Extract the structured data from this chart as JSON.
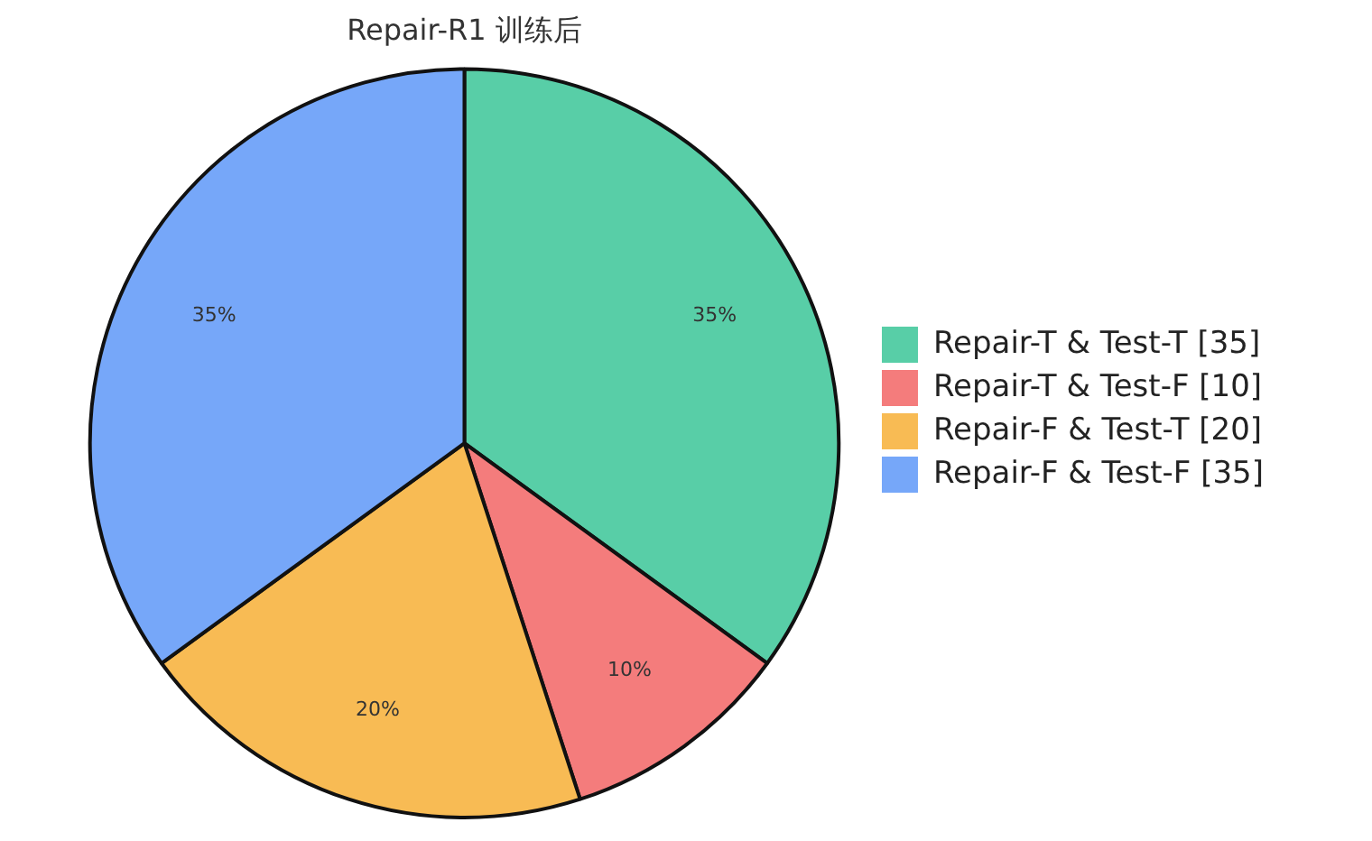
{
  "chart_data": {
    "type": "pie",
    "title": "Repair-R1 训练后",
    "categories": [
      "Repair-T & Test-T [35]",
      "Repair-T & Test-F [10]",
      "Repair-F & Test-T [20]",
      "Repair-F & Test-F [35]"
    ],
    "values": [
      35,
      10,
      20,
      35
    ],
    "colors": [
      "#58cea7",
      "#f47c7c",
      "#f8bb54",
      "#76a7f9"
    ],
    "value_labels": [
      "35%",
      "10%",
      "20%",
      "35%"
    ],
    "legend": "right"
  }
}
